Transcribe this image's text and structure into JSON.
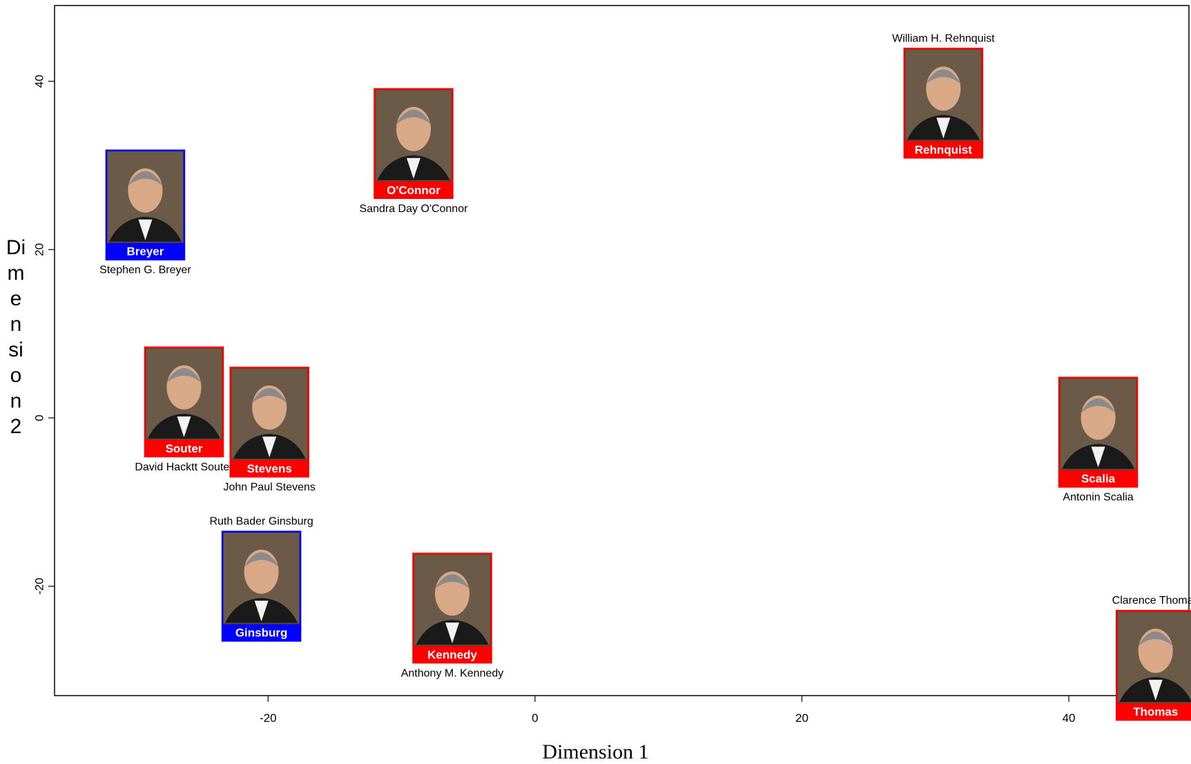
{
  "chart_data": {
    "type": "scatter",
    "title": "",
    "xlabel": "Dimension 1",
    "ylabel": "Dimension 2",
    "xlim": [
      -36,
      49
    ],
    "ylim": [
      -33,
      49
    ],
    "xticks": [
      -20,
      0,
      20,
      40
    ],
    "yticks": [
      -20,
      0,
      20,
      40
    ],
    "grid": false,
    "points": [
      {
        "badge": "Breyer",
        "full_name": "Stephen G. Breyer",
        "x": -29.2,
        "y": 25.3,
        "color": "#0000ff",
        "name_pos": "below"
      },
      {
        "badge": "O'Connor",
        "full_name": "Sandra Day O'Connor",
        "x": -9.1,
        "y": 32.6,
        "color": "#ff0000",
        "name_pos": "below"
      },
      {
        "badge": "Rehnquist",
        "full_name": "William H. Rehnquist",
        "x": 30.6,
        "y": 37.4,
        "color": "#ff0000",
        "name_pos": "above"
      },
      {
        "badge": "Souter",
        "full_name": "David Hacktt Souter",
        "x": -26.3,
        "y": 1.9,
        "color": "#ff0000",
        "name_pos": "below"
      },
      {
        "badge": "Stevens",
        "full_name": "John Paul Stevens",
        "x": -19.9,
        "y": -0.5,
        "color": "#ff0000",
        "name_pos": "below"
      },
      {
        "badge": "Scalia",
        "full_name": "Antonin Scalia",
        "x": 42.2,
        "y": -1.7,
        "color": "#ff0000",
        "name_pos": "below"
      },
      {
        "badge": "Ginsburg",
        "full_name": "Ruth Bader Ginsburg",
        "x": -20.5,
        "y": -20.0,
        "color": "#0000ff",
        "name_pos": "above"
      },
      {
        "badge": "Kennedy",
        "full_name": "Anthony M. Kennedy",
        "x": -6.2,
        "y": -22.6,
        "color": "#ff0000",
        "name_pos": "below"
      },
      {
        "badge": "Thomas",
        "full_name": "Clarence Thomas",
        "x": 46.5,
        "y": -29.4,
        "color": "#ff0000",
        "name_pos": "above"
      }
    ]
  }
}
